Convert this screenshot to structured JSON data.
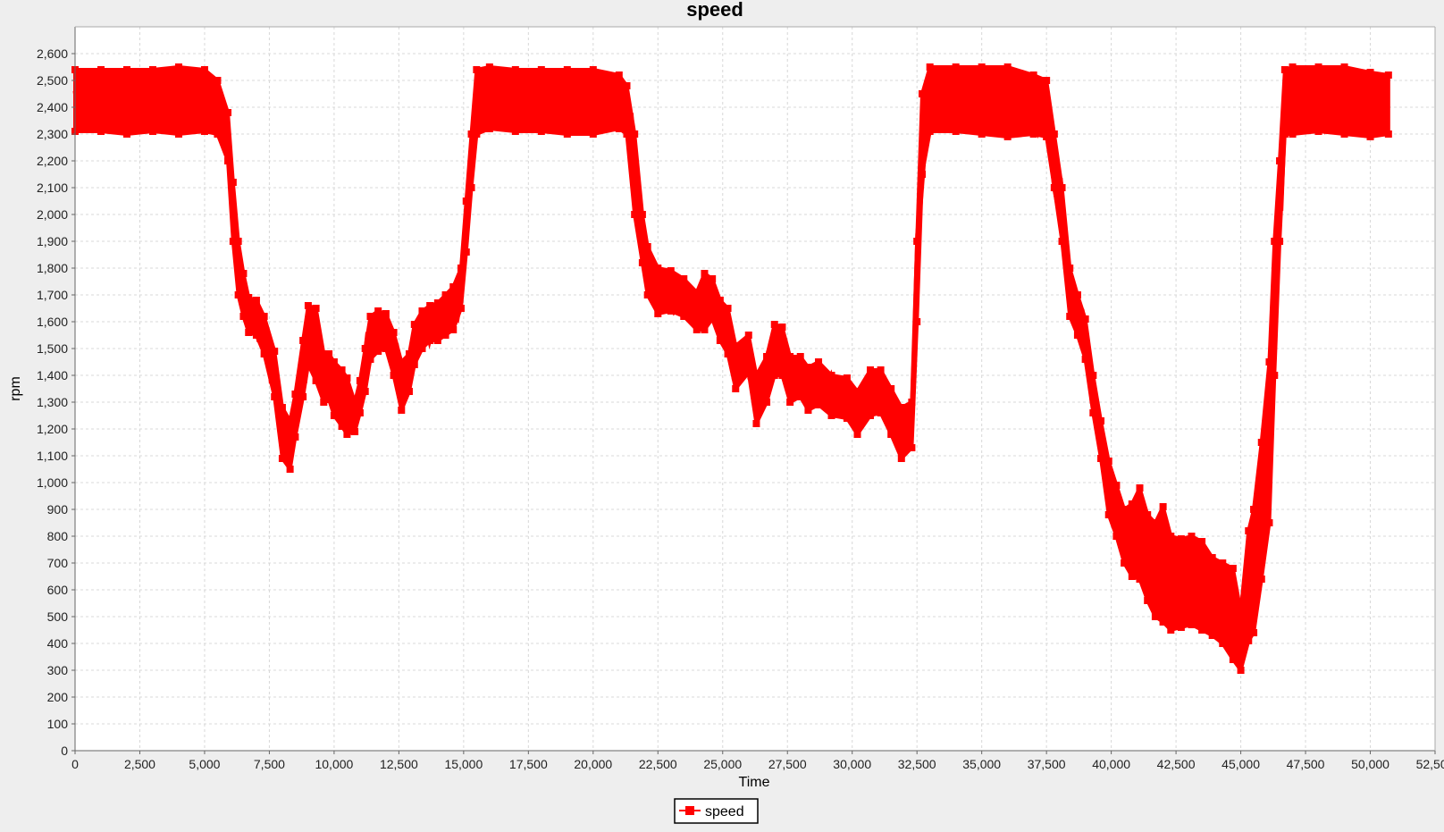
{
  "chart_data": {
    "type": "line",
    "title": "speed",
    "xlabel": "Time",
    "ylabel": "rpm",
    "xlim": [
      0,
      52500
    ],
    "ylim": [
      0,
      2700
    ],
    "x_tick_step": 2500,
    "y_tick_step": 100,
    "grid": true,
    "legend_position": "bottom-center",
    "series": [
      {
        "name": "speed",
        "color": "#ff0000",
        "marker": "square",
        "band_width": 120,
        "x": [
          0,
          1000,
          2000,
          3000,
          4000,
          5000,
          5500,
          5900,
          6100,
          6300,
          6500,
          6700,
          7000,
          7300,
          7700,
          8000,
          8300,
          8500,
          8800,
          9000,
          9300,
          9600,
          9800,
          10000,
          10300,
          10500,
          10800,
          11000,
          11200,
          11400,
          11700,
          12000,
          12300,
          12600,
          12900,
          13100,
          13400,
          13700,
          14000,
          14300,
          14600,
          14900,
          15100,
          15300,
          15500,
          16000,
          17000,
          18000,
          19000,
          20000,
          21000,
          21300,
          21600,
          21900,
          22100,
          22500,
          23000,
          23500,
          24000,
          24300,
          24600,
          24900,
          25200,
          25500,
          26000,
          26300,
          26700,
          27000,
          27300,
          27600,
          28000,
          28300,
          28700,
          29200,
          29800,
          30200,
          30700,
          31100,
          31500,
          31900,
          32300,
          32500,
          32700,
          33000,
          34000,
          35000,
          36000,
          37000,
          37500,
          37800,
          38100,
          38400,
          38700,
          39000,
          39300,
          39600,
          39900,
          40200,
          40500,
          40800,
          41100,
          41400,
          41700,
          42000,
          42300,
          42700,
          43100,
          43500,
          43900,
          44300,
          44700,
          45000,
          45300,
          45500,
          45800,
          46100,
          46300,
          46500,
          46700,
          47000,
          48000,
          49000,
          50000,
          50700
        ],
        "low": [
          2310,
          2310,
          2300,
          2310,
          2300,
          2310,
          2300,
          2200,
          1900,
          1700,
          1620,
          1560,
          1550,
          1480,
          1320,
          1090,
          1050,
          1170,
          1320,
          1440,
          1380,
          1300,
          1310,
          1250,
          1210,
          1180,
          1190,
          1260,
          1340,
          1460,
          1490,
          1500,
          1400,
          1270,
          1340,
          1440,
          1500,
          1530,
          1530,
          1550,
          1570,
          1650,
          1860,
          2100,
          2300,
          2320,
          2310,
          2310,
          2300,
          2300,
          2320,
          2300,
          2000,
          1820,
          1700,
          1630,
          1640,
          1620,
          1570,
          1570,
          1610,
          1530,
          1480,
          1350,
          1410,
          1220,
          1300,
          1400,
          1400,
          1300,
          1320,
          1270,
          1290,
          1250,
          1240,
          1180,
          1250,
          1260,
          1180,
          1090,
          1130,
          1600,
          2150,
          2310,
          2310,
          2300,
          2290,
          2300,
          2290,
          2100,
          1900,
          1620,
          1550,
          1460,
          1260,
          1090,
          880,
          800,
          700,
          650,
          640,
          560,
          500,
          480,
          450,
          460,
          470,
          450,
          430,
          400,
          340,
          300,
          410,
          440,
          640,
          850,
          1400,
          1900,
          2300,
          2300,
          2310,
          2300,
          2290,
          2300
        ],
        "high": [
          2540,
          2540,
          2540,
          2540,
          2550,
          2540,
          2500,
          2380,
          2120,
          1900,
          1780,
          1690,
          1680,
          1620,
          1490,
          1280,
          1230,
          1330,
          1530,
          1660,
          1650,
          1480,
          1480,
          1450,
          1420,
          1390,
          1300,
          1380,
          1500,
          1620,
          1640,
          1630,
          1560,
          1450,
          1480,
          1590,
          1640,
          1660,
          1670,
          1700,
          1730,
          1800,
          2050,
          2300,
          2540,
          2550,
          2540,
          2540,
          2540,
          2540,
          2520,
          2480,
          2300,
          2000,
          1880,
          1800,
          1790,
          1760,
          1710,
          1780,
          1760,
          1680,
          1650,
          1510,
          1550,
          1400,
          1470,
          1590,
          1580,
          1470,
          1470,
          1430,
          1450,
          1400,
          1390,
          1340,
          1420,
          1420,
          1350,
          1280,
          1300,
          1900,
          2450,
          2550,
          2550,
          2550,
          2550,
          2520,
          2500,
          2300,
          2100,
          1800,
          1700,
          1610,
          1400,
          1230,
          1080,
          990,
          900,
          920,
          980,
          880,
          850,
          910,
          800,
          790,
          800,
          780,
          720,
          700,
          680,
          520,
          820,
          900,
          1150,
          1450,
          1900,
          2200,
          2540,
          2550,
          2550,
          2550,
          2530,
          2520
        ]
      }
    ]
  }
}
